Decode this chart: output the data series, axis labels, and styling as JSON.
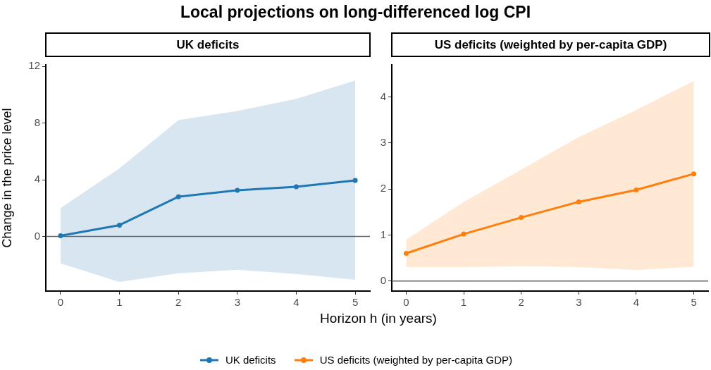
{
  "chart_data": [
    {
      "type": "line",
      "title": "Local projections on long-differenced log CPI",
      "subtitle": "UK deficits",
      "xlabel": "Horizon h (in years)",
      "ylabel": "Change in the price level",
      "x": [
        0,
        1,
        2,
        3,
        4,
        5
      ],
      "xlim": [
        -0.25,
        5.25
      ],
      "xticks": [
        0,
        1,
        2,
        3,
        4,
        5
      ],
      "ylim": [
        -3.85,
        12.1
      ],
      "yticks": [
        0,
        4,
        8,
        12
      ],
      "marker": "circle",
      "line_style": "solid",
      "legend": "bottom",
      "series": [
        {
          "name": "UK deficits",
          "color": "#1f77b4",
          "values": [
            0.05,
            0.8,
            2.8,
            3.25,
            3.5,
            3.95
          ],
          "lower": [
            -1.9,
            -3.2,
            -2.6,
            -2.35,
            -2.65,
            -3.05
          ],
          "upper": [
            2.0,
            4.8,
            8.2,
            8.85,
            9.7,
            11.0
          ]
        }
      ],
      "ref_lines": [
        {
          "axis": "y",
          "value": 0,
          "color": "#666666"
        }
      ]
    },
    {
      "type": "line",
      "subtitle": "US deficits (weighted by per-capita GDP)",
      "x": [
        0,
        1,
        2,
        3,
        4,
        5
      ],
      "xlim": [
        -0.25,
        5.25
      ],
      "xticks": [
        0,
        1,
        2,
        3,
        4,
        5
      ],
      "ylim": [
        -0.22,
        4.7
      ],
      "yticks": [
        0,
        1,
        2,
        3,
        4
      ],
      "marker": "circle",
      "line_style": "solid",
      "legend": "bottom",
      "series": [
        {
          "name": "US deficits (weighted by per-capita GDP)",
          "color": "#ff7f0e",
          "values": [
            0.6,
            1.02,
            1.38,
            1.72,
            1.98,
            2.33
          ],
          "lower": [
            0.3,
            0.3,
            0.32,
            0.3,
            0.24,
            0.31
          ],
          "upper": [
            0.9,
            1.72,
            2.42,
            3.13,
            3.72,
            4.35
          ]
        }
      ],
      "ref_lines": [
        {
          "axis": "y",
          "value": 0,
          "color": "#666666"
        }
      ]
    }
  ]
}
